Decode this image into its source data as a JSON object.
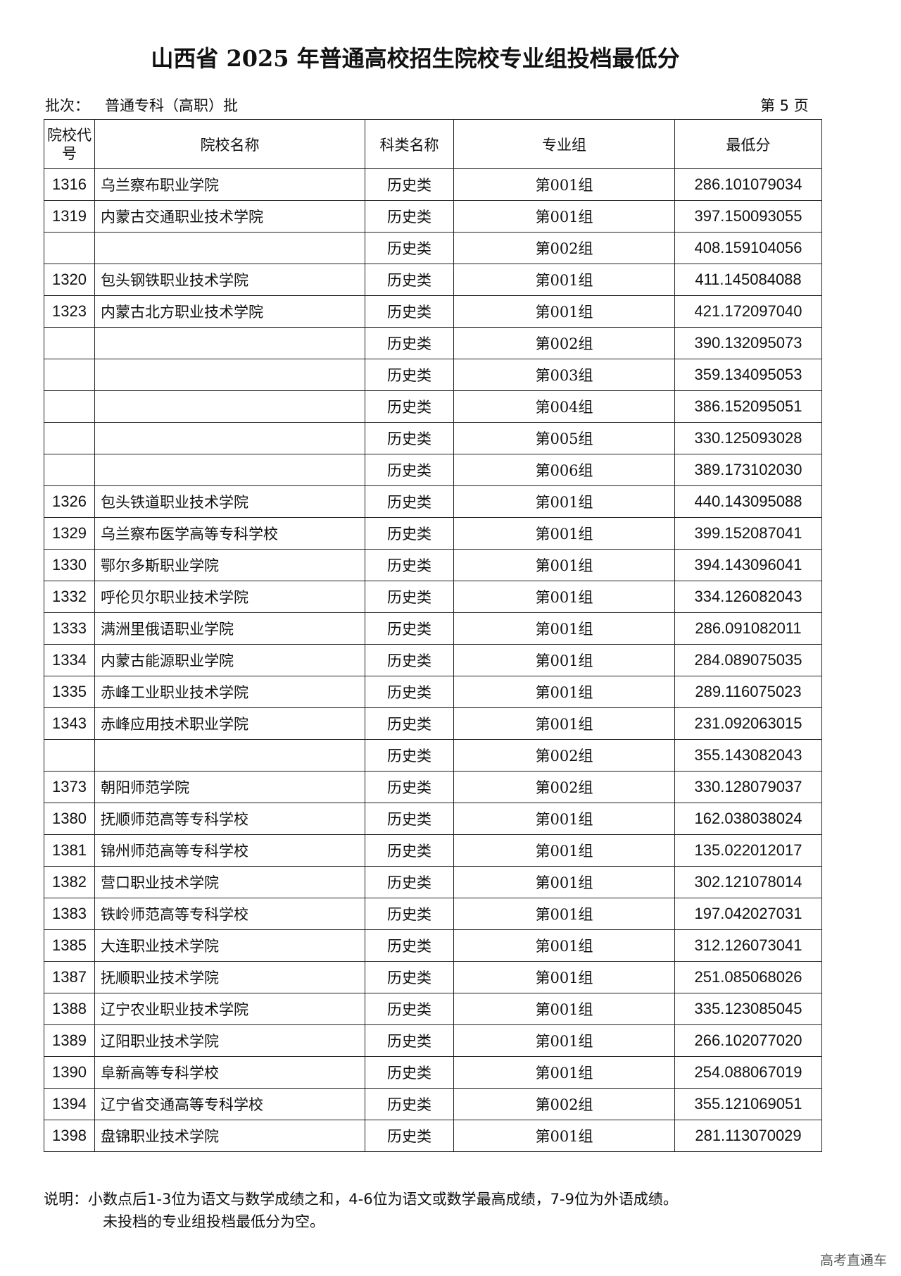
{
  "title": "山西省 2025 年普通高校招生院校专业组投档最低分",
  "batch_label": "批次：",
  "batch_value": "普通专科（高职）批",
  "page_label": "第 5 页",
  "headers": {
    "code": "院校代号",
    "name": "院校名称",
    "category": "科类名称",
    "group": "专业组",
    "score": "最低分"
  },
  "rows": [
    {
      "code": "1316",
      "name": "乌兰察布职业学院",
      "category": "历史类",
      "group": "第001组",
      "score": "286.101079034"
    },
    {
      "code": "1319",
      "name": "内蒙古交通职业技术学院",
      "category": "历史类",
      "group": "第001组",
      "score": "397.150093055"
    },
    {
      "code": "",
      "name": "",
      "category": "历史类",
      "group": "第002组",
      "score": "408.159104056"
    },
    {
      "code": "1320",
      "name": "包头钢铁职业技术学院",
      "category": "历史类",
      "group": "第001组",
      "score": "411.145084088"
    },
    {
      "code": "1323",
      "name": "内蒙古北方职业技术学院",
      "category": "历史类",
      "group": "第001组",
      "score": "421.172097040"
    },
    {
      "code": "",
      "name": "",
      "category": "历史类",
      "group": "第002组",
      "score": "390.132095073"
    },
    {
      "code": "",
      "name": "",
      "category": "历史类",
      "group": "第003组",
      "score": "359.134095053"
    },
    {
      "code": "",
      "name": "",
      "category": "历史类",
      "group": "第004组",
      "score": "386.152095051"
    },
    {
      "code": "",
      "name": "",
      "category": "历史类",
      "group": "第005组",
      "score": "330.125093028"
    },
    {
      "code": "",
      "name": "",
      "category": "历史类",
      "group": "第006组",
      "score": "389.173102030"
    },
    {
      "code": "1326",
      "name": "包头铁道职业技术学院",
      "category": "历史类",
      "group": "第001组",
      "score": "440.143095088"
    },
    {
      "code": "1329",
      "name": "乌兰察布医学高等专科学校",
      "category": "历史类",
      "group": "第001组",
      "score": "399.152087041"
    },
    {
      "code": "1330",
      "name": "鄂尔多斯职业学院",
      "category": "历史类",
      "group": "第001组",
      "score": "394.143096041"
    },
    {
      "code": "1332",
      "name": "呼伦贝尔职业技术学院",
      "category": "历史类",
      "group": "第001组",
      "score": "334.126082043"
    },
    {
      "code": "1333",
      "name": "满洲里俄语职业学院",
      "category": "历史类",
      "group": "第001组",
      "score": "286.091082011"
    },
    {
      "code": "1334",
      "name": "内蒙古能源职业学院",
      "category": "历史类",
      "group": "第001组",
      "score": "284.089075035"
    },
    {
      "code": "1335",
      "name": "赤峰工业职业技术学院",
      "category": "历史类",
      "group": "第001组",
      "score": "289.116075023"
    },
    {
      "code": "1343",
      "name": "赤峰应用技术职业学院",
      "category": "历史类",
      "group": "第001组",
      "score": "231.092063015"
    },
    {
      "code": "",
      "name": "",
      "category": "历史类",
      "group": "第002组",
      "score": "355.143082043"
    },
    {
      "code": "1373",
      "name": "朝阳师范学院",
      "category": "历史类",
      "group": "第002组",
      "score": "330.128079037"
    },
    {
      "code": "1380",
      "name": "抚顺师范高等专科学校",
      "category": "历史类",
      "group": "第001组",
      "score": "162.038038024"
    },
    {
      "code": "1381",
      "name": "锦州师范高等专科学校",
      "category": "历史类",
      "group": "第001组",
      "score": "135.022012017"
    },
    {
      "code": "1382",
      "name": "营口职业技术学院",
      "category": "历史类",
      "group": "第001组",
      "score": "302.121078014"
    },
    {
      "code": "1383",
      "name": "铁岭师范高等专科学校",
      "category": "历史类",
      "group": "第001组",
      "score": "197.042027031"
    },
    {
      "code": "1385",
      "name": "大连职业技术学院",
      "category": "历史类",
      "group": "第001组",
      "score": "312.126073041"
    },
    {
      "code": "1387",
      "name": "抚顺职业技术学院",
      "category": "历史类",
      "group": "第001组",
      "score": "251.085068026"
    },
    {
      "code": "1388",
      "name": "辽宁农业职业技术学院",
      "category": "历史类",
      "group": "第001组",
      "score": "335.123085045"
    },
    {
      "code": "1389",
      "name": "辽阳职业技术学院",
      "category": "历史类",
      "group": "第001组",
      "score": "266.102077020"
    },
    {
      "code": "1390",
      "name": "阜新高等专科学校",
      "category": "历史类",
      "group": "第001组",
      "score": "254.088067019"
    },
    {
      "code": "1394",
      "name": "辽宁省交通高等专科学校",
      "category": "历史类",
      "group": "第002组",
      "score": "355.121069051"
    },
    {
      "code": "1398",
      "name": "盘锦职业技术学院",
      "category": "历史类",
      "group": "第001组",
      "score": "281.113070029"
    }
  ],
  "note_line1": "说明：小数点后1-3位为语文与数学成绩之和，4-6位为语文或数学最高成绩，7-9位为外语成绩。",
  "note_line2": "未投档的专业组投档最低分为空。",
  "watermark": "高考直通车"
}
